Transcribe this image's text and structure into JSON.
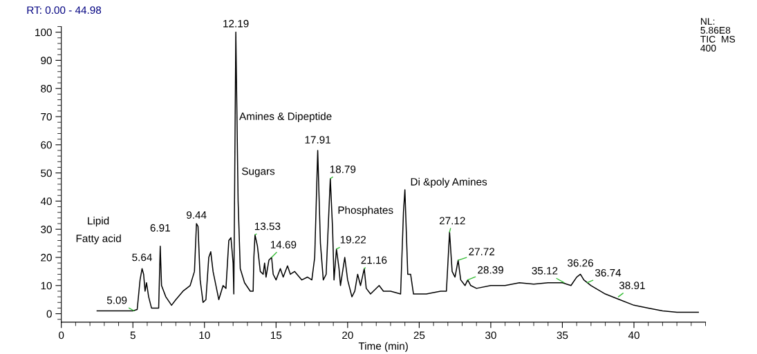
{
  "chart_data": {
    "type": "line",
    "title": "RT: 0.00 - 44.98",
    "xlabel": "Time (min)",
    "x": [
      2.5,
      3,
      4,
      5,
      5.3,
      5.5,
      5.64,
      5.75,
      5.85,
      5.95,
      6.1,
      6.3,
      6.8,
      6.91,
      7.0,
      7.3,
      7.7,
      8.0,
      8.5,
      9.0,
      9.3,
      9.44,
      9.55,
      9.7,
      9.9,
      10.1,
      10.3,
      10.44,
      10.6,
      11.0,
      11.3,
      11.5,
      11.7,
      11.85,
      12.0,
      12.05,
      12.19,
      12.35,
      12.5,
      12.8,
      13.2,
      13.4,
      13.45,
      13.53,
      13.7,
      13.9,
      14.1,
      14.2,
      14.3,
      14.5,
      14.69,
      14.8,
      15.0,
      15.3,
      15.5,
      15.8,
      16.0,
      16.3,
      16.8,
      17.2,
      17.5,
      17.7,
      17.91,
      18.1,
      18.3,
      18.5,
      18.79,
      18.95,
      19.05,
      19.22,
      19.4,
      19.5,
      19.8,
      20.0,
      20.3,
      20.5,
      20.7,
      20.9,
      21.16,
      21.3,
      21.6,
      22.2,
      22.5,
      23.0,
      23.7,
      23.9,
      24.0,
      24.2,
      24.4,
      24.6,
      25.5,
      26.5,
      26.9,
      27.12,
      27.3,
      27.5,
      27.72,
      27.9,
      28.2,
      28.39,
      28.6,
      29.0,
      30,
      31,
      32,
      33,
      34,
      35,
      35.6,
      36.0,
      36.26,
      36.5,
      37,
      38,
      39,
      40,
      41,
      42,
      43,
      44.5
    ],
    "series": [
      {
        "color": "#000000",
        "values": [
          1,
          1,
          1,
          1,
          1.5,
          12,
          16,
          14,
          8,
          11,
          6,
          2,
          2,
          24,
          10,
          6,
          3,
          5,
          8,
          10,
          15,
          32,
          31,
          12,
          4,
          5,
          20,
          22,
          15,
          5,
          10,
          9,
          26,
          27,
          18,
          7,
          100,
          40,
          16,
          11,
          8,
          8,
          20,
          28,
          24,
          15,
          14,
          18,
          13,
          19,
          20,
          14,
          12,
          16,
          13,
          17,
          14,
          15,
          12,
          13,
          12,
          20,
          58,
          25,
          12,
          14,
          48,
          30,
          12,
          23,
          16,
          10,
          20,
          12,
          6,
          8,
          14,
          10,
          16,
          9,
          7,
          10,
          8,
          8,
          7,
          36,
          44,
          14,
          14,
          7,
          7,
          8,
          8,
          29,
          15,
          13,
          19,
          12,
          10,
          12,
          10,
          9,
          10,
          10,
          11,
          10.5,
          11,
          11,
          10,
          13,
          14,
          12,
          10,
          7,
          5,
          3,
          2,
          1,
          0.5,
          0.5
        ]
      }
    ],
    "xlim": [
      0,
      45
    ],
    "ylim": [
      -3,
      102
    ],
    "xticks": [
      0,
      5,
      10,
      15,
      20,
      25,
      30,
      35,
      40
    ],
    "yticks": [
      0,
      10,
      20,
      30,
      40,
      50,
      60,
      70,
      80,
      90,
      100
    ],
    "grid": false,
    "marker": "none",
    "line_style": "solid",
    "annotations": [
      {
        "text": "12.19",
        "x": 12.19,
        "y": 100
      },
      {
        "text": "5.09",
        "x": 5.09,
        "y": 1
      },
      {
        "text": "5.64",
        "x": 5.64,
        "y": 16
      },
      {
        "text": "6.91",
        "x": 6.91,
        "y": 24
      },
      {
        "text": "9.44",
        "x": 9.44,
        "y": 32
      },
      {
        "text": "13.53",
        "x": 13.53,
        "y": 28
      },
      {
        "text": "14.69",
        "x": 14.69,
        "y": 20
      },
      {
        "text": "17.91",
        "x": 17.91,
        "y": 58
      },
      {
        "text": "18.79",
        "x": 18.79,
        "y": 48
      },
      {
        "text": "19.22",
        "x": 19.22,
        "y": 23
      },
      {
        "text": "21.16",
        "x": 21.16,
        "y": 16
      },
      {
        "text": "27.12",
        "x": 27.12,
        "y": 29
      },
      {
        "text": "27.72",
        "x": 27.72,
        "y": 19
      },
      {
        "text": "28.39",
        "x": 28.39,
        "y": 12
      },
      {
        "text": "35.12",
        "x": 35.12,
        "y": 11
      },
      {
        "text": "36.26",
        "x": 36.26,
        "y": 14
      },
      {
        "text": "36.74",
        "x": 36.74,
        "y": 11
      },
      {
        "text": "38.91",
        "x": 38.91,
        "y": 6
      },
      "Lipid",
      "Fatty acid",
      "Amines & Dipeptide",
      "Sugars",
      "Phosphates",
      "Di &poly Amines",
      "NL:\n5.86E8\nTIC  MS\n400"
    ]
  }
}
